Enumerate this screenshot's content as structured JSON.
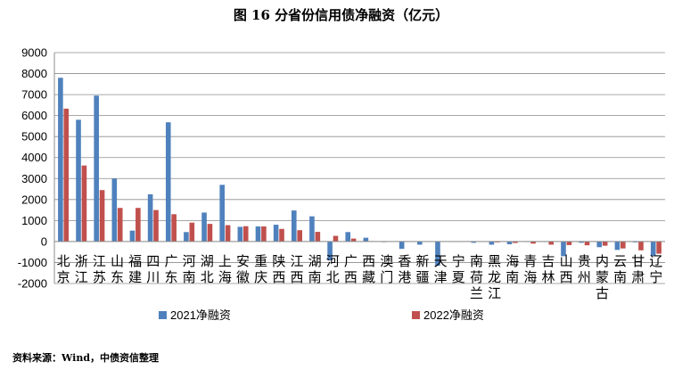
{
  "title": "图 16  分省份信用债净融资（亿元）",
  "source": "资料来源：Wind，中债资信整理",
  "chart_data": {
    "type": "bar",
    "ylim": [
      -2000,
      9000
    ],
    "yticks": [
      -2000,
      -1000,
      0,
      1000,
      2000,
      3000,
      4000,
      5000,
      6000,
      7000,
      8000,
      9000
    ],
    "grid": true,
    "legend_position": "bottom",
    "categories": [
      "北京",
      "浙江",
      "江苏",
      "山东",
      "福建",
      "四川",
      "广东",
      "河南",
      "湖北",
      "上海",
      "安徽",
      "重庆",
      "陕西",
      "江西",
      "湖南",
      "河北",
      "广西",
      "西藏",
      "澳门",
      "香港",
      "新疆",
      "天津",
      "宁夏",
      "南荷兰",
      "黑龙江",
      "海南",
      "青海",
      "吉林",
      "山西",
      "贵州",
      "内蒙古",
      "云南",
      "甘肃",
      "辽宁"
    ],
    "series": [
      {
        "name": "2021净融资",
        "color": "#4F81BD",
        "values": [
          7800,
          5800,
          6950,
          3000,
          520,
          2250,
          5680,
          450,
          1380,
          2700,
          700,
          720,
          800,
          1480,
          1200,
          -900,
          450,
          180,
          -30,
          -350,
          -150,
          -1150,
          0,
          -60,
          -150,
          -130,
          -20,
          -20,
          -700,
          -60,
          -270,
          -400,
          -40,
          -700
        ]
      },
      {
        "name": "2022净融资",
        "color": "#C0504D",
        "values": [
          6330,
          3620,
          2450,
          1600,
          1600,
          1500,
          1300,
          900,
          840,
          780,
          730,
          720,
          600,
          540,
          460,
          270,
          140,
          20,
          0,
          0,
          0,
          0,
          0,
          0,
          -40,
          -70,
          -100,
          -150,
          -170,
          -180,
          -200,
          -330,
          -420,
          -580
        ]
      }
    ]
  }
}
